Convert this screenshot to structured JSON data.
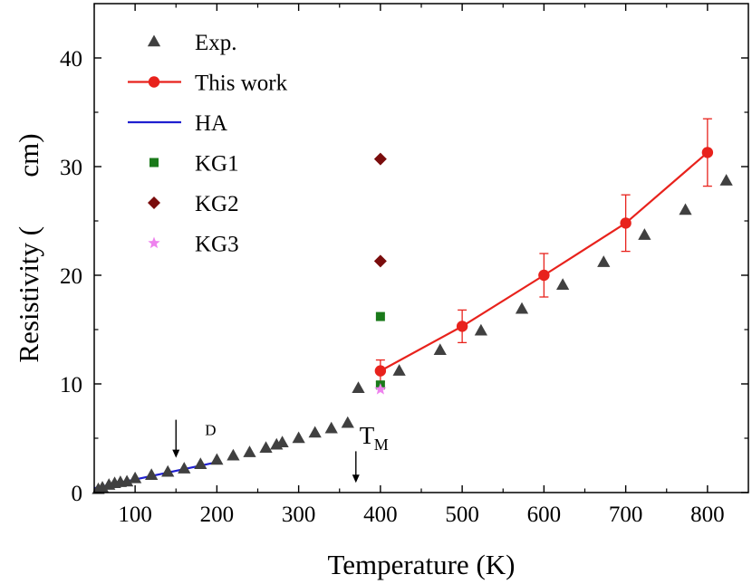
{
  "chart_data": {
    "type": "scatter",
    "xlabel": "Temperature (K)",
    "ylabel": "Resistivity (       cm)",
    "xlim": [
      50,
      850
    ],
    "ylim": [
      0,
      45
    ],
    "xticks": [
      "100",
      "200",
      "300",
      "400",
      "500",
      "600",
      "700",
      "800"
    ],
    "yticks": [
      "0",
      "10",
      "20",
      "30",
      "40"
    ],
    "grid": false,
    "legend_position": "top-left",
    "legend": [
      {
        "label": "Exp.",
        "marker": "triangle",
        "color": "#404040"
      },
      {
        "label": "This work",
        "marker": "circle-line",
        "color": "#e8221c"
      },
      {
        "label": "HA",
        "marker": "line",
        "color": "#1f1fd0"
      },
      {
        "label": "KG1",
        "marker": "square",
        "color": "#1a7a1a"
      },
      {
        "label": "KG2",
        "marker": "diamond",
        "color": "#7a0c0c"
      },
      {
        "label": "KG3",
        "marker": "star",
        "color": "#ee82ee"
      }
    ],
    "series": [
      {
        "name": "Exp.",
        "x": [
          55,
          60,
          68,
          75,
          82,
          90,
          100,
          120,
          140,
          160,
          180,
          200,
          220,
          240,
          260,
          273,
          280,
          300,
          320,
          340,
          360,
          373,
          423,
          473,
          523,
          573,
          623,
          673,
          723,
          773,
          823
        ],
        "y": [
          0.3,
          0.45,
          0.7,
          0.85,
          0.95,
          1.0,
          1.3,
          1.6,
          1.9,
          2.2,
          2.6,
          3.0,
          3.4,
          3.7,
          4.1,
          4.4,
          4.6,
          5.0,
          5.5,
          5.9,
          6.4,
          9.6,
          11.2,
          13.1,
          14.9,
          16.9,
          19.1,
          21.2,
          23.7,
          26.0,
          28.7
        ]
      },
      {
        "name": "This work",
        "x": [
          400,
          500,
          600,
          700,
          800
        ],
        "y": [
          11.2,
          15.3,
          20.0,
          24.8,
          31.3
        ],
        "yerr": [
          1.0,
          1.5,
          2.0,
          2.6,
          3.1
        ]
      },
      {
        "name": "HA",
        "x": [
          50,
          200
        ],
        "y": [
          0.4,
          2.8
        ]
      },
      {
        "name": "KG1",
        "x": [
          400,
          400
        ],
        "y": [
          16.2,
          9.9
        ]
      },
      {
        "name": "KG2",
        "x": [
          400,
          400
        ],
        "y": [
          30.7,
          21.3
        ]
      },
      {
        "name": "KG3",
        "x": [
          400
        ],
        "y": [
          9.5
        ]
      }
    ],
    "annotations": [
      {
        "text": "D",
        "x": 150,
        "y": 5.3
      },
      {
        "text": "T",
        "sub": "M",
        "x": 370,
        "y": 4.5
      }
    ],
    "arrows": [
      {
        "x": 150,
        "y_from": 6.7,
        "y_to": 3.2
      },
      {
        "x": 370,
        "y_from": 3.8,
        "y_to": 0.9
      }
    ]
  }
}
